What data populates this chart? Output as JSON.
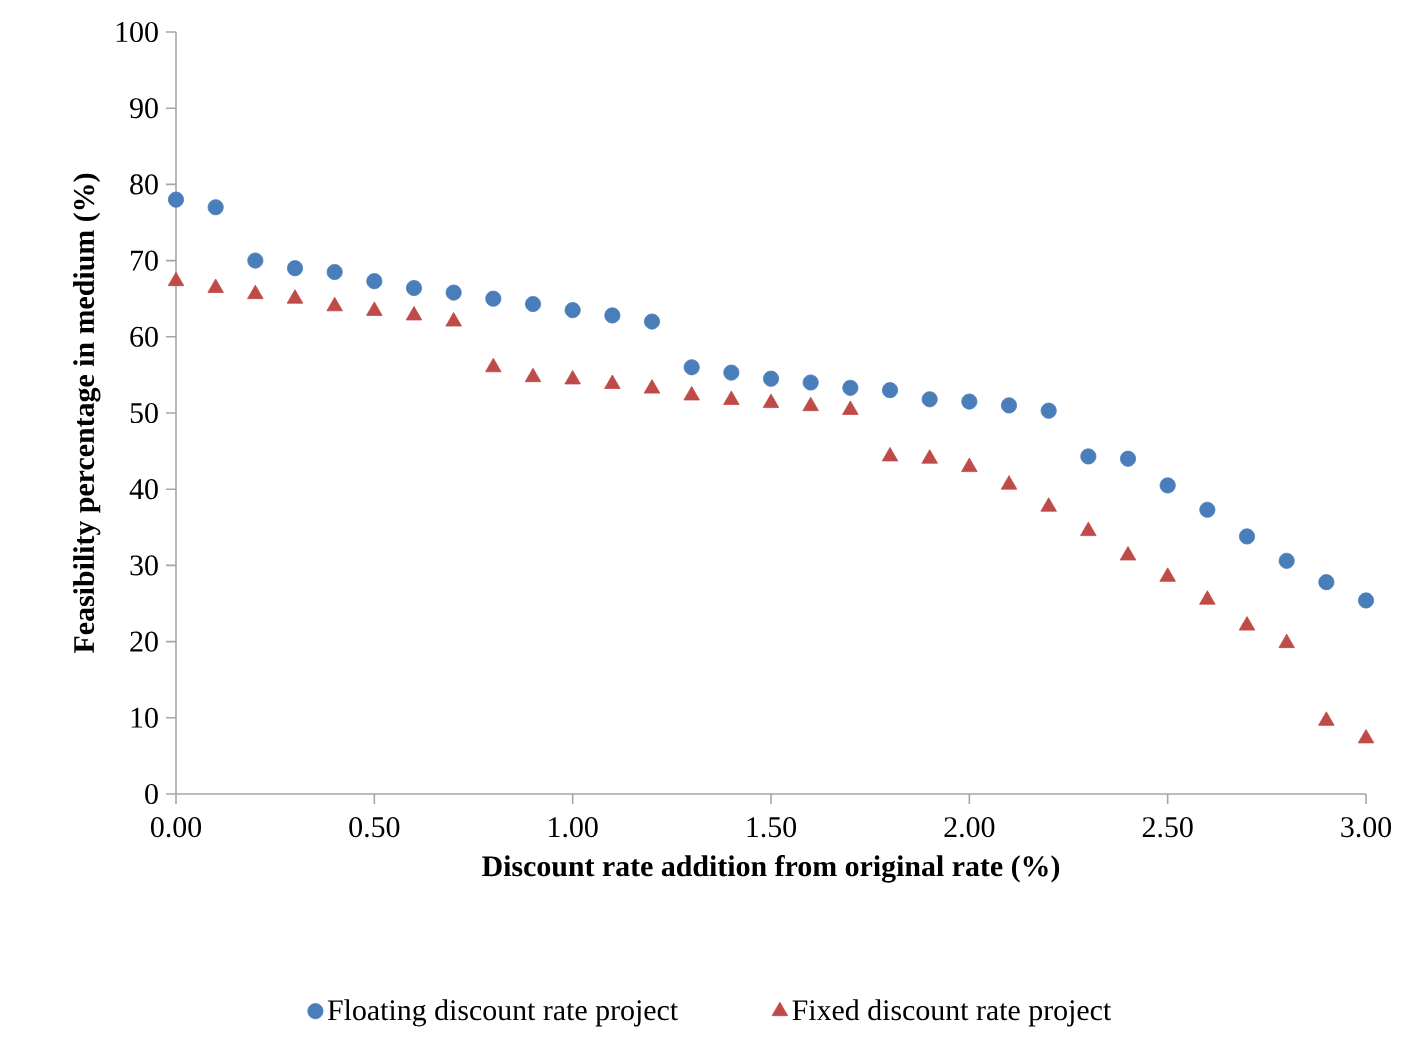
{
  "chart_data": {
    "type": "scatter",
    "xlabel": "Discount rate addition  from original rate (%)",
    "ylabel": "Feasibility percentage in medium (%)",
    "x": [
      0,
      0.1,
      0.2,
      0.3,
      0.4,
      0.5,
      0.6,
      0.7,
      0.8,
      0.9,
      1.0,
      1.1,
      1.2,
      1.3,
      1.4,
      1.5,
      1.6,
      1.7,
      1.8,
      1.9,
      2.0,
      2.1,
      2.2,
      2.3,
      2.4,
      2.5,
      2.6,
      2.7,
      2.8,
      2.9,
      3.0
    ],
    "series": [
      {
        "name": "Floating discount rate project",
        "color": "#4a7ebb",
        "marker": "circle",
        "values": [
          78,
          77,
          70,
          69,
          68.5,
          67.3,
          66.4,
          65.8,
          65,
          64.3,
          63.5,
          62.8,
          62,
          56,
          55.3,
          54.5,
          54,
          53.3,
          53,
          51.8,
          51.5,
          51,
          50.3,
          44.3,
          44,
          40.5,
          37.3,
          33.8,
          30.6,
          27.8,
          25.4
        ]
      },
      {
        "name": "Fixed discount rate project",
        "color": "#be4b48",
        "marker": "triangle",
        "values": [
          67.3,
          66.4,
          65.6,
          65,
          64,
          63.4,
          62.8,
          62,
          56,
          54.7,
          54.4,
          53.8,
          53.2,
          52.3,
          51.7,
          51.3,
          50.9,
          50.4,
          44.3,
          44,
          42.9,
          40.6,
          37.7,
          34.5,
          31.3,
          28.5,
          25.5,
          22.1,
          19.8,
          9.6,
          7.3
        ]
      }
    ],
    "xlim": [
      0,
      3
    ],
    "xticks": [
      {
        "value": 0,
        "label": "0.00"
      },
      {
        "value": 0.5,
        "label": "0.50"
      },
      {
        "value": 1,
        "label": "1.00"
      },
      {
        "value": 1.5,
        "label": "1.50"
      },
      {
        "value": 2,
        "label": "2.00"
      },
      {
        "value": 2.5,
        "label": "2.50"
      },
      {
        "value": 3,
        "label": "3.00"
      }
    ],
    "ylim": [
      0,
      100
    ],
    "yticks": [
      0,
      10,
      20,
      30,
      40,
      50,
      60,
      70,
      80,
      90,
      100
    ],
    "legend": "bottom"
  }
}
